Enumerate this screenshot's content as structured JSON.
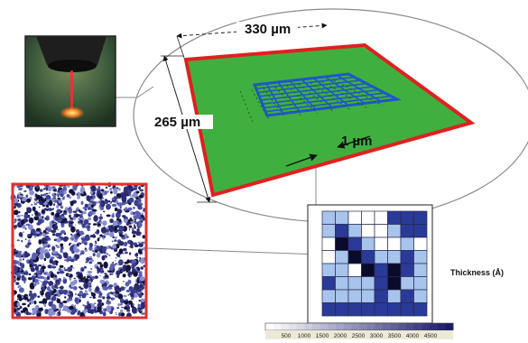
{
  "dimensions": {
    "width_label": "330 µm",
    "height_label": "265 µm",
    "spacing_label": "1 µm"
  },
  "thickness_map": {
    "label": "Thickness (Å)",
    "grid": [
      [
        1,
        1,
        0,
        0,
        0,
        3,
        3,
        3
      ],
      [
        1,
        3,
        1,
        0,
        0,
        1,
        3,
        3
      ],
      [
        0,
        4,
        3,
        1,
        0,
        0,
        1,
        0
      ],
      [
        0,
        1,
        4,
        3,
        1,
        1,
        3,
        1
      ],
      [
        1,
        1,
        0,
        4,
        3,
        4,
        3,
        1
      ],
      [
        3,
        1,
        1,
        1,
        3,
        4,
        1,
        1
      ],
      [
        1,
        1,
        1,
        1,
        3,
        1,
        3,
        1
      ],
      [
        3,
        3,
        3,
        3,
        3,
        3,
        3,
        3
      ]
    ],
    "palette": [
      "#ffffff",
      "#a7c4ec",
      "#6f93d8",
      "#2a3a98",
      "#0a0a2a"
    ]
  },
  "colorbar": {
    "ticks": [
      "500",
      "1000",
      "1500",
      "2000",
      "2500",
      "3000",
      "3500",
      "4000",
      "4500"
    ]
  },
  "colors": {
    "film_green": "#3fb03f",
    "film_border": "#e02020",
    "grid_blue": "#1f56c8",
    "image_border": "#e03030"
  }
}
